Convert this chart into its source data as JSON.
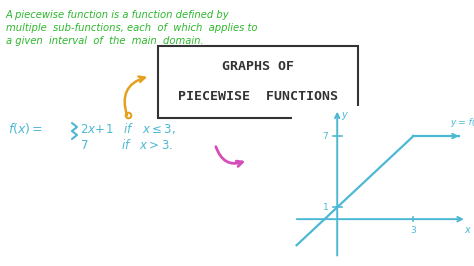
{
  "bg_color": "#ffffff",
  "green_color": "#2db82d",
  "orange_color": "#e6a020",
  "blue_color": "#4db8d4",
  "magenta_color": "#d44db8",
  "dark_color": "#333333",
  "top_text_lines": [
    "A piecewise function is a function defined by",
    "multiple  sub-functions, each  of  which  applies to",
    "a given  interval  of  the  main  domain."
  ],
  "box_line1": "GRAPHS OF",
  "box_line2": "PIECEWISE  FUNCTIONS",
  "axis_label_x": "x",
  "axis_label_y": "y",
  "func_label": "y = f(x)",
  "tick_1_label": "1",
  "tick_3_label": "3",
  "tick_7_label": "7"
}
